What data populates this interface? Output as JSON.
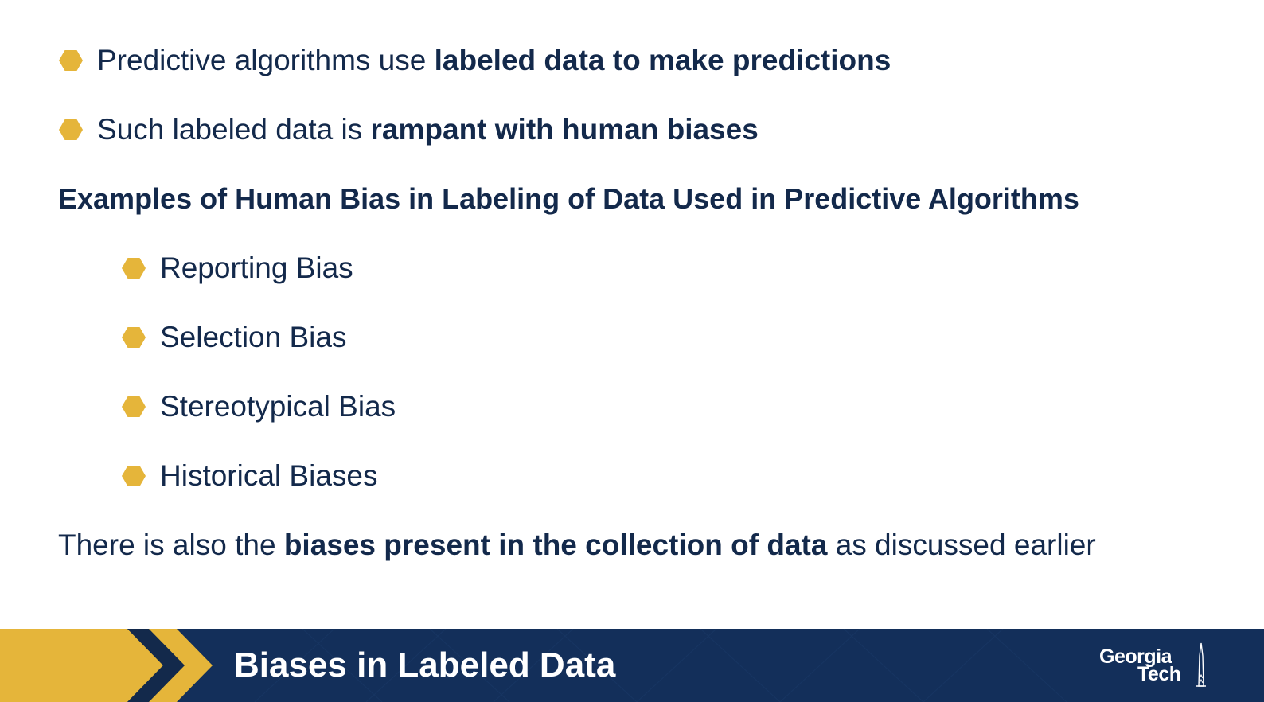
{
  "bullets_top": [
    {
      "plain": "Predictive algorithms use ",
      "bold": "labeled data to make predictions"
    },
    {
      "plain": "Such labeled data is ",
      "bold": "rampant with human biases"
    }
  ],
  "heading": "Examples of Human Bias in Labeling of Data Used in Predictive Algorithms",
  "sub_bullets": [
    "Reporting Bias",
    "Selection Bias",
    "Stereotypical Bias",
    "Historical Biases"
  ],
  "closing": {
    "plain_start": "There is also the ",
    "bold": "biases present in the collection of data",
    "plain_end": " as discussed earlier"
  },
  "footer": {
    "title": "Biases in Labeled Data",
    "logo_line1": "Georgia",
    "logo_line2": "Tech"
  },
  "colors": {
    "navy": "#13294b",
    "gold": "#e5b53a",
    "footer_bg": "#132f5a"
  }
}
